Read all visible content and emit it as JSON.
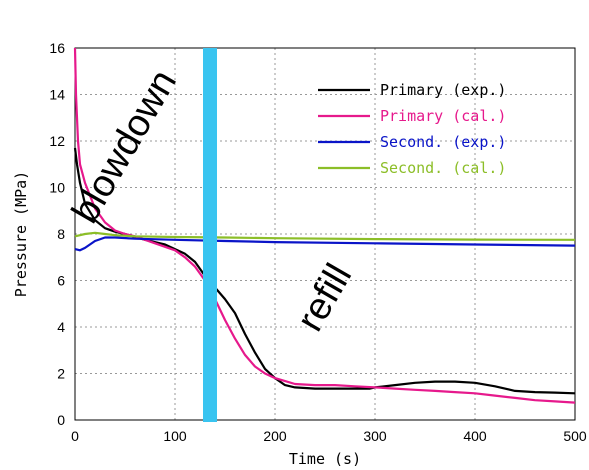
{
  "chart_data": {
    "type": "line",
    "title": "",
    "xlabel": "Time (s)",
    "ylabel": "Pressure (MPa)",
    "xlim": [
      0,
      500
    ],
    "ylim": [
      0,
      16
    ],
    "xticks": [
      0,
      100,
      200,
      300,
      400,
      500
    ],
    "yticks": [
      0,
      2,
      4,
      6,
      8,
      10,
      12,
      14,
      16
    ],
    "grid": true,
    "legend_position": "top-right",
    "series": [
      {
        "name": "Primary (exp.)",
        "color": "#000000",
        "x": [
          0,
          2,
          5,
          10,
          20,
          30,
          40,
          50,
          70,
          90,
          110,
          120,
          130,
          140,
          150,
          160,
          170,
          180,
          190,
          200,
          210,
          220,
          240,
          260,
          280,
          295,
          300,
          320,
          340,
          360,
          380,
          400,
          420,
          440,
          460,
          480,
          500
        ],
        "y": [
          11.7,
          11.0,
          10.2,
          9.3,
          8.6,
          8.25,
          8.1,
          8.0,
          7.75,
          7.55,
          7.15,
          6.8,
          6.2,
          5.7,
          5.2,
          4.6,
          3.7,
          2.9,
          2.2,
          1.8,
          1.5,
          1.4,
          1.35,
          1.35,
          1.35,
          1.35,
          1.4,
          1.5,
          1.6,
          1.65,
          1.65,
          1.6,
          1.45,
          1.25,
          1.2,
          1.18,
          1.15
        ]
      },
      {
        "name": "Primary (cal.)",
        "color": "#e6198c",
        "x": [
          0,
          1,
          3,
          5,
          10,
          20,
          30,
          40,
          50,
          60,
          80,
          100,
          110,
          120,
          130,
          140,
          150,
          160,
          170,
          180,
          190,
          200,
          220,
          240,
          260,
          280,
          300,
          320,
          340,
          360,
          380,
          400,
          420,
          440,
          460,
          480,
          500
        ],
        "y": [
          16.0,
          14.0,
          12.0,
          11.0,
          10.2,
          9.1,
          8.5,
          8.15,
          8.0,
          7.9,
          7.6,
          7.3,
          7.0,
          6.6,
          6.0,
          5.2,
          4.3,
          3.5,
          2.8,
          2.3,
          2.0,
          1.8,
          1.55,
          1.5,
          1.5,
          1.45,
          1.4,
          1.35,
          1.3,
          1.25,
          1.2,
          1.15,
          1.05,
          0.95,
          0.85,
          0.8,
          0.75
        ]
      },
      {
        "name": "Second. (exp.)",
        "color": "#0a14c8",
        "x": [
          0,
          5,
          10,
          20,
          30,
          40,
          60,
          100,
          150,
          200,
          300,
          400,
          500
        ],
        "y": [
          7.35,
          7.3,
          7.4,
          7.7,
          7.85,
          7.85,
          7.8,
          7.75,
          7.7,
          7.65,
          7.6,
          7.55,
          7.5
        ]
      },
      {
        "name": "Second. (cal.)",
        "color": "#8cbe28",
        "x": [
          0,
          5,
          10,
          20,
          30,
          40,
          60,
          100,
          150,
          200,
          300,
          400,
          500
        ],
        "y": [
          7.9,
          7.95,
          8.0,
          8.05,
          8.0,
          7.95,
          7.9,
          7.87,
          7.85,
          7.82,
          7.78,
          7.76,
          7.75
        ]
      }
    ],
    "annotations": [
      {
        "text": "blowdown",
        "x": 60,
        "y": 11.5
      },
      {
        "text": "refill",
        "x": 260,
        "y": 5.0
      }
    ],
    "highlight_line": {
      "x": 135,
      "color": "#39c4f0"
    }
  }
}
